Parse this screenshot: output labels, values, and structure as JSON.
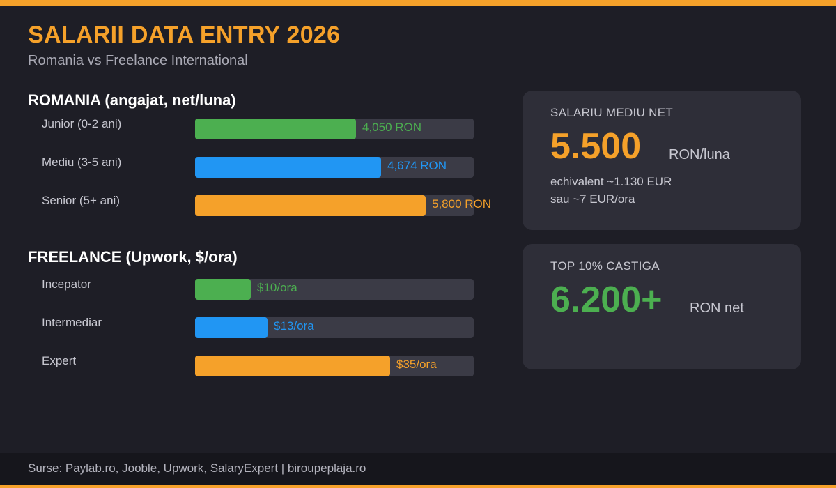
{
  "header": {
    "title": "SALARII DATA ENTRY 2026",
    "subtitle": "Romania vs Freelance International"
  },
  "colors": {
    "accent": "#f5a12a",
    "green": "#4caf50",
    "blue": "#2196f3",
    "orange": "#f5a12a",
    "track": "#3b3b46"
  },
  "chart_data": [
    {
      "type": "bar",
      "orientation": "horizontal",
      "title": "ROMANIA (angajat, net/luna)",
      "categories": [
        "Junior (0-2 ani)",
        "Mediu (3-5 ani)",
        "Senior (5+ ani)"
      ],
      "values": [
        4050,
        4674,
        5800
      ],
      "value_labels": [
        "4,050 RON",
        "4,674 RON",
        "5,800 RON"
      ],
      "colors": [
        "#4caf50",
        "#2196f3",
        "#f5a12a"
      ],
      "xlim": [
        0,
        7000
      ]
    },
    {
      "type": "bar",
      "orientation": "horizontal",
      "title": "FREELANCE (Upwork, $/ora)",
      "categories": [
        "Incepator",
        "Intermediar",
        "Expert"
      ],
      "values": [
        10,
        13,
        35
      ],
      "value_labels": [
        "$10/ora",
        "$13/ora",
        "$35/ora"
      ],
      "colors": [
        "#4caf50",
        "#2196f3",
        "#f5a12a"
      ],
      "xlim": [
        0,
        50
      ]
    }
  ],
  "cards": {
    "average": {
      "label": "SALARIU MEDIU NET",
      "value": "5.500",
      "unit": "RON/luna",
      "note1": "echivalent ~1.130 EUR",
      "note2": "sau ~7 EUR/ora"
    },
    "top": {
      "label": "TOP 10% CASTIGA",
      "value": "6.200+",
      "unit": "RON net"
    }
  },
  "footer": {
    "sources": "Surse: Paylab.ro, Jooble, Upwork, SalaryExpert | biroupeplaja.ro"
  }
}
